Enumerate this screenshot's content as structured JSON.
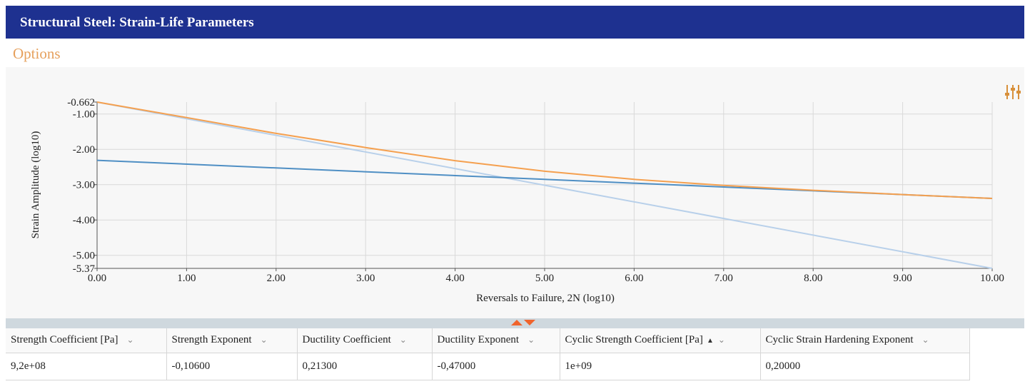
{
  "header": {
    "title": "Structural Steel: Strain-Life Parameters"
  },
  "options": {
    "label": "Options"
  },
  "toolbar": {
    "settings_icon": "chart-settings-sliders-icon"
  },
  "colors": {
    "header_bg": "#1e3190",
    "options_text": "#e6a05c",
    "total": "#f5a04f",
    "elastic": "#4f8fc4",
    "plastic": "#b8d0ea"
  },
  "chart_data": {
    "type": "line",
    "xlabel": "Reversals to Failure, 2N (log10)",
    "ylabel": "Strain Amplitude (log10)",
    "xlim": [
      0,
      10
    ],
    "ylim": [
      -5.37,
      -0.662
    ],
    "x_ticks": [
      "0.00",
      "1.00",
      "2.00",
      "3.00",
      "4.00",
      "5.00",
      "6.00",
      "7.00",
      "8.00",
      "9.00",
      "10.00"
    ],
    "y_ticks": [
      {
        "v": -0.662,
        "label": "-0.662"
      },
      {
        "v": -1,
        "label": "-1.00"
      },
      {
        "v": -2,
        "label": "-2.00"
      },
      {
        "v": -3,
        "label": "-3.00"
      },
      {
        "v": -4,
        "label": "-4.00"
      },
      {
        "v": -5,
        "label": "-5.00"
      },
      {
        "v": -5.37,
        "label": "-5.37"
      }
    ],
    "grid": true,
    "series": [
      {
        "key": "total",
        "color": "#f5a04f",
        "x": [
          0,
          1,
          2,
          3,
          4,
          5,
          6,
          7,
          8,
          9,
          10
        ],
        "values": [
          -0.662,
          -1.1,
          -1.55,
          -1.95,
          -2.32,
          -2.62,
          -2.85,
          -3.02,
          -3.16,
          -3.28,
          -3.39
        ]
      },
      {
        "key": "elastic",
        "color": "#4f8fc4",
        "x": [
          0,
          10
        ],
        "values": [
          -2.31,
          -3.39
        ]
      },
      {
        "key": "plastic",
        "color": "#b8d0ea",
        "x": [
          0,
          10
        ],
        "values": [
          -0.662,
          -5.37
        ]
      }
    ]
  },
  "table": {
    "columns": [
      {
        "label": "Strength Coefficient [Pa]"
      },
      {
        "label": "Strength Exponent"
      },
      {
        "label": "Ductility Coefficient"
      },
      {
        "label": "Ductility Exponent"
      },
      {
        "label": "Cyclic Strength Coefficient [Pa]",
        "sorted": "asc"
      },
      {
        "label": "Cyclic Strain Hardening Exponent"
      }
    ],
    "rows": [
      [
        "9,2e+08",
        "-0,10600",
        "0,21300",
        "-0,47000",
        "1e+09",
        "0,20000"
      ]
    ]
  }
}
